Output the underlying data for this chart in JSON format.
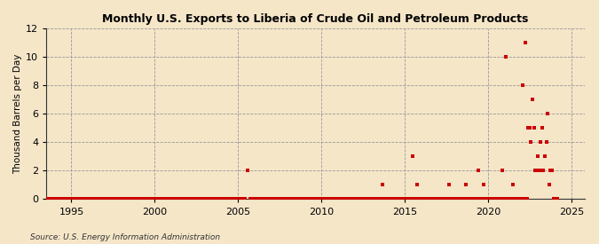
{
  "title": "Monthly U.S. Exports to Liberia of Crude Oil and Petroleum Products",
  "ylabel": "Thousand Barrels per Day",
  "source": "Source: U.S. Energy Information Administration",
  "background_color": "#f5e6c8",
  "plot_bg_color": "#f5e6c8",
  "marker_color": "#cc0000",
  "marker_size": 6,
  "ylim": [
    0,
    12
  ],
  "yticks": [
    0,
    2,
    4,
    6,
    8,
    10,
    12
  ],
  "xlim_start": 1993.5,
  "xlim_end": 2025.8,
  "xticks": [
    1995,
    2000,
    2005,
    2010,
    2015,
    2020,
    2025
  ],
  "data": [
    [
      1993.08,
      0
    ],
    [
      1993.17,
      0
    ],
    [
      1993.25,
      0
    ],
    [
      1993.33,
      0
    ],
    [
      1993.42,
      0
    ],
    [
      1993.5,
      0
    ],
    [
      1993.58,
      0
    ],
    [
      1993.67,
      0
    ],
    [
      1993.75,
      0
    ],
    [
      1993.83,
      0
    ],
    [
      1993.92,
      0
    ],
    [
      1994.0,
      0
    ],
    [
      1994.08,
      0
    ],
    [
      1994.17,
      0
    ],
    [
      1994.25,
      0
    ],
    [
      1994.33,
      0
    ],
    [
      1994.42,
      0
    ],
    [
      1994.5,
      0
    ],
    [
      1994.58,
      0
    ],
    [
      1994.67,
      0
    ],
    [
      1994.75,
      0
    ],
    [
      1994.83,
      0
    ],
    [
      1994.92,
      0
    ],
    [
      1995.0,
      0
    ],
    [
      1995.08,
      0
    ],
    [
      1995.17,
      0
    ],
    [
      1995.25,
      0
    ],
    [
      1995.33,
      0
    ],
    [
      1995.42,
      0
    ],
    [
      1995.5,
      0
    ],
    [
      1995.58,
      0
    ],
    [
      1995.67,
      0
    ],
    [
      1995.75,
      0
    ],
    [
      1995.83,
      0
    ],
    [
      1995.92,
      0
    ],
    [
      1996.0,
      0
    ],
    [
      1996.08,
      0
    ],
    [
      1996.17,
      0
    ],
    [
      1996.25,
      0
    ],
    [
      1996.33,
      0
    ],
    [
      1996.42,
      0
    ],
    [
      1996.5,
      0
    ],
    [
      1996.58,
      0
    ],
    [
      1996.67,
      0
    ],
    [
      1996.75,
      0
    ],
    [
      1996.83,
      0
    ],
    [
      1996.92,
      0
    ],
    [
      1997.0,
      0
    ],
    [
      1997.08,
      0
    ],
    [
      1997.17,
      0
    ],
    [
      1997.25,
      0
    ],
    [
      1997.33,
      0
    ],
    [
      1997.42,
      0
    ],
    [
      1997.5,
      0
    ],
    [
      1997.58,
      0
    ],
    [
      1997.67,
      0
    ],
    [
      1997.75,
      0
    ],
    [
      1997.83,
      0
    ],
    [
      1997.92,
      0
    ],
    [
      1998.0,
      0
    ],
    [
      1998.08,
      0
    ],
    [
      1998.17,
      0
    ],
    [
      1998.25,
      0
    ],
    [
      1998.33,
      0
    ],
    [
      1998.42,
      0
    ],
    [
      1998.5,
      0
    ],
    [
      1998.58,
      0
    ],
    [
      1998.67,
      0
    ],
    [
      1998.75,
      0
    ],
    [
      1998.83,
      0
    ],
    [
      1998.92,
      0
    ],
    [
      1999.0,
      0
    ],
    [
      1999.08,
      0
    ],
    [
      1999.17,
      0
    ],
    [
      1999.25,
      0
    ],
    [
      1999.33,
      0
    ],
    [
      1999.42,
      0
    ],
    [
      1999.5,
      0
    ],
    [
      1999.58,
      0
    ],
    [
      1999.67,
      0
    ],
    [
      1999.75,
      0
    ],
    [
      1999.83,
      0
    ],
    [
      1999.92,
      0
    ],
    [
      2000.0,
      0
    ],
    [
      2000.08,
      0
    ],
    [
      2000.17,
      0
    ],
    [
      2000.25,
      0
    ],
    [
      2000.33,
      0
    ],
    [
      2000.42,
      0
    ],
    [
      2000.5,
      0
    ],
    [
      2000.58,
      0
    ],
    [
      2000.67,
      0
    ],
    [
      2000.75,
      0
    ],
    [
      2000.83,
      0
    ],
    [
      2000.92,
      0
    ],
    [
      2001.0,
      0
    ],
    [
      2001.08,
      0
    ],
    [
      2001.17,
      0
    ],
    [
      2001.25,
      0
    ],
    [
      2001.33,
      0
    ],
    [
      2001.42,
      0
    ],
    [
      2001.5,
      0
    ],
    [
      2001.58,
      0
    ],
    [
      2001.67,
      0
    ],
    [
      2001.75,
      0
    ],
    [
      2001.83,
      0
    ],
    [
      2001.92,
      0
    ],
    [
      2002.0,
      0
    ],
    [
      2002.08,
      0
    ],
    [
      2002.17,
      0
    ],
    [
      2002.25,
      0
    ],
    [
      2002.33,
      0
    ],
    [
      2002.42,
      0
    ],
    [
      2002.5,
      0
    ],
    [
      2002.58,
      0
    ],
    [
      2002.67,
      0
    ],
    [
      2002.75,
      0
    ],
    [
      2002.83,
      0
    ],
    [
      2002.92,
      0
    ],
    [
      2003.0,
      0
    ],
    [
      2003.08,
      0
    ],
    [
      2003.17,
      0
    ],
    [
      2003.25,
      0
    ],
    [
      2003.33,
      0
    ],
    [
      2003.42,
      0
    ],
    [
      2003.5,
      0
    ],
    [
      2003.58,
      0
    ],
    [
      2003.67,
      0
    ],
    [
      2003.75,
      0
    ],
    [
      2003.83,
      0
    ],
    [
      2003.92,
      0
    ],
    [
      2004.0,
      0
    ],
    [
      2004.08,
      0
    ],
    [
      2004.17,
      0
    ],
    [
      2004.25,
      0
    ],
    [
      2004.33,
      0
    ],
    [
      2004.42,
      0
    ],
    [
      2004.5,
      0
    ],
    [
      2004.58,
      0
    ],
    [
      2004.67,
      0
    ],
    [
      2004.75,
      0
    ],
    [
      2004.83,
      0
    ],
    [
      2004.92,
      0
    ],
    [
      2005.0,
      0
    ],
    [
      2005.08,
      0
    ],
    [
      2005.17,
      0
    ],
    [
      2005.25,
      0
    ],
    [
      2005.33,
      0
    ],
    [
      2005.42,
      0
    ],
    [
      2005.58,
      2
    ],
    [
      2005.75,
      0
    ],
    [
      2005.83,
      0
    ],
    [
      2005.92,
      0
    ],
    [
      2006.0,
      0
    ],
    [
      2006.08,
      0
    ],
    [
      2006.17,
      0
    ],
    [
      2006.25,
      0
    ],
    [
      2006.33,
      0
    ],
    [
      2006.42,
      0
    ],
    [
      2006.5,
      0
    ],
    [
      2006.58,
      0
    ],
    [
      2006.67,
      0
    ],
    [
      2006.75,
      0
    ],
    [
      2006.83,
      0
    ],
    [
      2006.92,
      0
    ],
    [
      2007.0,
      0
    ],
    [
      2007.08,
      0
    ],
    [
      2007.17,
      0
    ],
    [
      2007.25,
      0
    ],
    [
      2007.33,
      0
    ],
    [
      2007.42,
      0
    ],
    [
      2007.5,
      0
    ],
    [
      2007.58,
      0
    ],
    [
      2007.67,
      0
    ],
    [
      2007.75,
      0
    ],
    [
      2007.83,
      0
    ],
    [
      2007.92,
      0
    ],
    [
      2008.0,
      0
    ],
    [
      2008.08,
      0
    ],
    [
      2008.17,
      0
    ],
    [
      2008.25,
      0
    ],
    [
      2008.33,
      0
    ],
    [
      2008.42,
      0
    ],
    [
      2008.5,
      0
    ],
    [
      2008.58,
      0
    ],
    [
      2008.67,
      0
    ],
    [
      2008.75,
      0
    ],
    [
      2008.83,
      0
    ],
    [
      2008.92,
      0
    ],
    [
      2009.0,
      0
    ],
    [
      2009.08,
      0
    ],
    [
      2009.17,
      0
    ],
    [
      2009.25,
      0
    ],
    [
      2009.33,
      0
    ],
    [
      2009.42,
      0
    ],
    [
      2009.5,
      0
    ],
    [
      2009.58,
      0
    ],
    [
      2009.67,
      0
    ],
    [
      2009.75,
      0
    ],
    [
      2009.83,
      0
    ],
    [
      2009.92,
      0
    ],
    [
      2010.0,
      0
    ],
    [
      2010.08,
      0
    ],
    [
      2010.17,
      0
    ],
    [
      2010.25,
      0
    ],
    [
      2010.33,
      0
    ],
    [
      2010.42,
      0
    ],
    [
      2010.5,
      0
    ],
    [
      2010.58,
      0
    ],
    [
      2010.67,
      0
    ],
    [
      2010.75,
      0
    ],
    [
      2010.83,
      0
    ],
    [
      2010.92,
      0
    ],
    [
      2011.0,
      0
    ],
    [
      2011.08,
      0
    ],
    [
      2011.17,
      0
    ],
    [
      2011.25,
      0
    ],
    [
      2011.33,
      0
    ],
    [
      2011.42,
      0
    ],
    [
      2011.5,
      0
    ],
    [
      2011.58,
      0
    ],
    [
      2011.67,
      0
    ],
    [
      2011.75,
      0
    ],
    [
      2011.83,
      0
    ],
    [
      2011.92,
      0
    ],
    [
      2012.0,
      0
    ],
    [
      2012.08,
      0
    ],
    [
      2012.17,
      0
    ],
    [
      2012.25,
      0
    ],
    [
      2012.33,
      0
    ],
    [
      2012.42,
      0
    ],
    [
      2012.5,
      0
    ],
    [
      2012.58,
      0
    ],
    [
      2012.67,
      0
    ],
    [
      2012.75,
      0
    ],
    [
      2012.83,
      0
    ],
    [
      2012.92,
      0
    ],
    [
      2013.0,
      0
    ],
    [
      2013.08,
      0
    ],
    [
      2013.17,
      0
    ],
    [
      2013.25,
      0
    ],
    [
      2013.33,
      0
    ],
    [
      2013.42,
      0
    ],
    [
      2013.5,
      0
    ],
    [
      2013.58,
      0
    ],
    [
      2013.67,
      1
    ],
    [
      2013.75,
      0
    ],
    [
      2013.83,
      0
    ],
    [
      2013.92,
      0
    ],
    [
      2014.0,
      0
    ],
    [
      2014.08,
      0
    ],
    [
      2014.17,
      0
    ],
    [
      2014.25,
      0
    ],
    [
      2014.33,
      0
    ],
    [
      2014.42,
      0
    ],
    [
      2014.5,
      0
    ],
    [
      2014.58,
      0
    ],
    [
      2014.67,
      0
    ],
    [
      2014.75,
      0
    ],
    [
      2014.83,
      0
    ],
    [
      2014.92,
      0
    ],
    [
      2015.0,
      0
    ],
    [
      2015.08,
      0
    ],
    [
      2015.17,
      0
    ],
    [
      2015.25,
      0
    ],
    [
      2015.33,
      0
    ],
    [
      2015.42,
      0
    ],
    [
      2015.5,
      3
    ],
    [
      2015.58,
      0
    ],
    [
      2015.67,
      0
    ],
    [
      2015.75,
      1
    ],
    [
      2015.83,
      0
    ],
    [
      2015.92,
      0
    ],
    [
      2016.0,
      0
    ],
    [
      2016.08,
      0
    ],
    [
      2016.17,
      0
    ],
    [
      2016.25,
      0
    ],
    [
      2016.33,
      0
    ],
    [
      2016.42,
      0
    ],
    [
      2016.5,
      0
    ],
    [
      2016.58,
      0
    ],
    [
      2016.67,
      0
    ],
    [
      2016.75,
      0
    ],
    [
      2016.83,
      0
    ],
    [
      2016.92,
      0
    ],
    [
      2017.0,
      0
    ],
    [
      2017.08,
      0
    ],
    [
      2017.17,
      0
    ],
    [
      2017.25,
      0
    ],
    [
      2017.33,
      0
    ],
    [
      2017.42,
      0
    ],
    [
      2017.5,
      0
    ],
    [
      2017.58,
      0
    ],
    [
      2017.67,
      1
    ],
    [
      2017.75,
      0
    ],
    [
      2017.83,
      0
    ],
    [
      2017.92,
      0
    ],
    [
      2018.0,
      0
    ],
    [
      2018.08,
      0
    ],
    [
      2018.17,
      0
    ],
    [
      2018.25,
      0
    ],
    [
      2018.33,
      0
    ],
    [
      2018.42,
      0
    ],
    [
      2018.5,
      0
    ],
    [
      2018.58,
      0
    ],
    [
      2018.67,
      1
    ],
    [
      2018.75,
      0
    ],
    [
      2018.83,
      0
    ],
    [
      2018.92,
      0
    ],
    [
      2019.0,
      0
    ],
    [
      2019.08,
      0
    ],
    [
      2019.17,
      0
    ],
    [
      2019.25,
      0
    ],
    [
      2019.33,
      0
    ],
    [
      2019.42,
      2
    ],
    [
      2019.5,
      0
    ],
    [
      2019.58,
      0
    ],
    [
      2019.67,
      0
    ],
    [
      2019.75,
      1
    ],
    [
      2019.83,
      0
    ],
    [
      2019.92,
      0
    ],
    [
      2020.0,
      0
    ],
    [
      2020.08,
      0
    ],
    [
      2020.17,
      0
    ],
    [
      2020.25,
      0
    ],
    [
      2020.33,
      0
    ],
    [
      2020.42,
      0
    ],
    [
      2020.5,
      0
    ],
    [
      2020.58,
      0
    ],
    [
      2020.67,
      0
    ],
    [
      2020.75,
      0
    ],
    [
      2020.83,
      2
    ],
    [
      2020.92,
      0
    ],
    [
      2021.0,
      0
    ],
    [
      2021.08,
      10
    ],
    [
      2021.17,
      0
    ],
    [
      2021.25,
      0
    ],
    [
      2021.33,
      0
    ],
    [
      2021.42,
      0
    ],
    [
      2021.5,
      1
    ],
    [
      2021.58,
      0
    ],
    [
      2021.67,
      0
    ],
    [
      2021.75,
      0
    ],
    [
      2021.83,
      0
    ],
    [
      2021.92,
      0
    ],
    [
      2022.0,
      0
    ],
    [
      2022.08,
      8
    ],
    [
      2022.17,
      0
    ],
    [
      2022.25,
      11
    ],
    [
      2022.33,
      0
    ],
    [
      2022.42,
      5
    ],
    [
      2022.5,
      5
    ],
    [
      2022.58,
      4
    ],
    [
      2022.67,
      7
    ],
    [
      2022.75,
      5
    ],
    [
      2022.83,
      2
    ],
    [
      2022.92,
      2
    ],
    [
      2023.0,
      3
    ],
    [
      2023.08,
      2
    ],
    [
      2023.17,
      4
    ],
    [
      2023.25,
      5
    ],
    [
      2023.33,
      2
    ],
    [
      2023.42,
      3
    ],
    [
      2023.5,
      4
    ],
    [
      2023.58,
      6
    ],
    [
      2023.67,
      1
    ],
    [
      2023.75,
      2
    ],
    [
      2023.83,
      2
    ],
    [
      2023.92,
      0
    ],
    [
      2024.0,
      0
    ],
    [
      2024.08,
      0
    ],
    [
      2024.17,
      0
    ]
  ]
}
